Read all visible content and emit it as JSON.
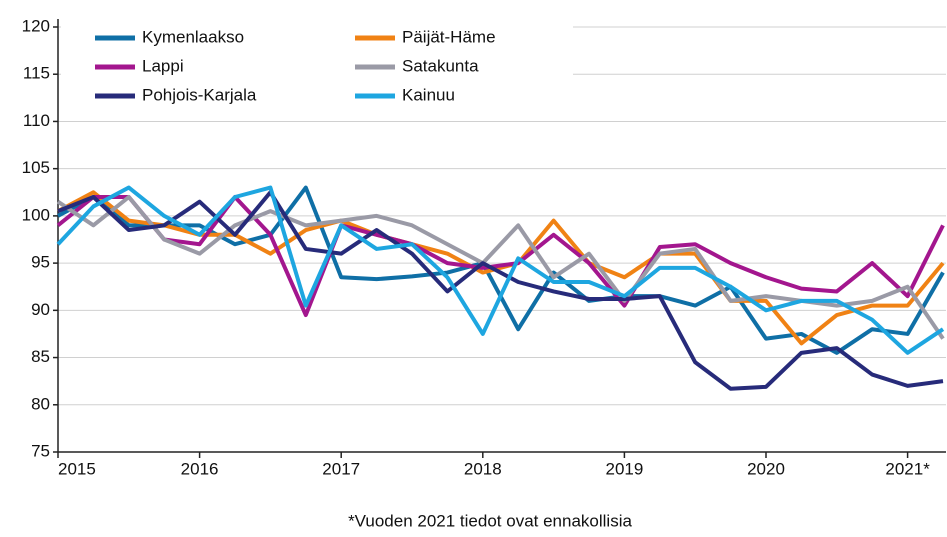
{
  "chart_data": {
    "type": "line",
    "annotation": "*Vuoden 2021 tiedot ovat ennakollisia",
    "categories": [
      "2015",
      null,
      null,
      null,
      "2016",
      null,
      null,
      null,
      "2017",
      null,
      null,
      null,
      "2018",
      null,
      null,
      null,
      "2019",
      null,
      null,
      null,
      "2020",
      null,
      null,
      null,
      "2021*",
      null
    ],
    "ylim": [
      75,
      120
    ],
    "yticks": [
      75,
      80,
      85,
      90,
      95,
      100,
      105,
      110,
      115,
      120
    ],
    "grid": true,
    "legend": "upper left",
    "series": [
      {
        "name": "Kymenlaakso",
        "color": "#0f6fa6",
        "values": [
          100,
          102,
          99,
          99,
          99,
          97,
          98,
          103,
          93.5,
          93.3,
          93.6,
          94,
          95,
          88,
          94,
          91,
          91.5,
          91.5,
          90.5,
          92.5,
          87,
          87.5,
          85.5,
          88,
          87.5,
          94
        ]
      },
      {
        "name": "Päijät-Häme",
        "color": "#f08214",
        "values": [
          100.5,
          102.5,
          99.5,
          99,
          98,
          98,
          96,
          98.5,
          99.5,
          98,
          97,
          96,
          94,
          95,
          99.5,
          95,
          93.5,
          96,
          96,
          91,
          91,
          86.5,
          89.5,
          90.5,
          90.5,
          95
        ]
      },
      {
        "name": "Lappi",
        "color": "#a3168e",
        "values": [
          99,
          102,
          102,
          97.5,
          97,
          102,
          98,
          89.5,
          99,
          98,
          97,
          95,
          94.5,
          95,
          98,
          95,
          90.5,
          96.7,
          97,
          95,
          93.5,
          92.3,
          92,
          95,
          91.5,
          99
        ]
      },
      {
        "name": "Satakunta",
        "color": "#9a9aa6",
        "values": [
          101.5,
          99,
          102,
          97.5,
          96,
          99,
          100.5,
          99,
          99.5,
          100,
          99,
          97,
          95,
          99,
          93.5,
          96,
          91,
          96,
          96.5,
          91,
          91.5,
          91,
          90.5,
          91,
          92.5,
          87
        ]
      },
      {
        "name": "Pohjois-Karjala",
        "color": "#272b7a",
        "values": [
          100.5,
          102,
          98.5,
          99,
          101.5,
          98,
          102.5,
          96.5,
          96,
          98.5,
          96,
          92,
          95,
          93,
          92,
          91.2,
          91.2,
          91.5,
          84.5,
          81.7,
          81.9,
          85.5,
          86,
          83.2,
          82,
          82.5
        ]
      },
      {
        "name": "Kainuu",
        "color": "#1ea6e0",
        "values": [
          97,
          101,
          103,
          100,
          98,
          102,
          103,
          90.5,
          99,
          96.5,
          97,
          93.5,
          87.5,
          95.5,
          93,
          93,
          91.5,
          94.5,
          94.5,
          92.5,
          90,
          91,
          91,
          89,
          85.5,
          88
        ]
      }
    ]
  }
}
